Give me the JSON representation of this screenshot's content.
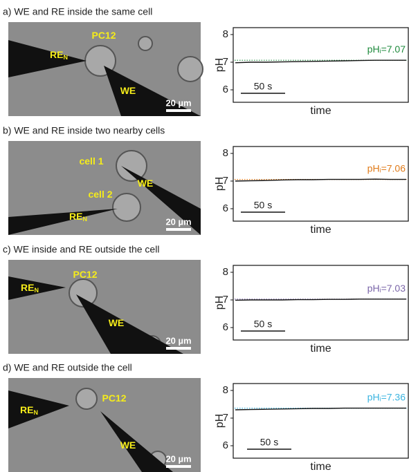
{
  "chart_data": [
    {
      "type": "line",
      "title": "a) WE and RE inside the same cell",
      "ylabel": "pH",
      "xlabel": "time",
      "ylim": [
        5.55,
        8.25
      ],
      "yticks": [
        6,
        7,
        8
      ],
      "color": "#111111",
      "values": [
        6.98,
        7.0,
        7.0,
        7.01,
        7.02,
        7.03,
        7.04,
        7.05,
        7.06,
        7.07,
        7.07,
        7.07
      ],
      "reference_line": 7.07,
      "reference_color": "#1e8a3c",
      "annotation": {
        "text": "pH",
        "sub": "i",
        "rest": "=7.07"
      },
      "time_bar": "50 s",
      "image_labels": [
        {
          "text": "PC12"
        },
        {
          "text": "RE",
          "sub": "N"
        },
        {
          "text": "WE"
        }
      ],
      "scale_bar": "20 µm"
    },
    {
      "type": "line",
      "title": "b) WE and RE inside two nearby cells",
      "ylabel": "pH",
      "xlabel": "time",
      "ylim": [
        5.55,
        8.25
      ],
      "yticks": [
        6,
        7,
        8
      ],
      "color": "#111111",
      "values": [
        7.0,
        7.01,
        7.02,
        7.04,
        7.05,
        7.05,
        7.06,
        7.06,
        7.06,
        7.07,
        7.06,
        7.06
      ],
      "reference_line": 7.06,
      "reference_color": "#e07b1a",
      "annotation": {
        "text": "pH",
        "sub": "i",
        "rest": "=7.06"
      },
      "time_bar": "50 s",
      "image_labels": [
        {
          "text": "cell 1"
        },
        {
          "text": "WE"
        },
        {
          "text": "cell 2"
        },
        {
          "text": "RE",
          "sub": "N"
        }
      ],
      "scale_bar": "20 µm"
    },
    {
      "type": "line",
      "title": "c) WE inside and RE outside the cell",
      "ylabel": "pH",
      "xlabel": "time",
      "ylim": [
        5.55,
        8.25
      ],
      "yticks": [
        6,
        7,
        8
      ],
      "color": "#111111",
      "values": [
        6.99,
        7.0,
        7.0,
        7.0,
        7.01,
        7.01,
        7.02,
        7.02,
        7.03,
        7.03,
        7.03,
        7.03
      ],
      "reference_line": 7.03,
      "reference_color": "#7a65a8",
      "annotation": {
        "text": "pH",
        "sub": "i",
        "rest": "=7.03"
      },
      "time_bar": "50 s",
      "image_labels": [
        {
          "text": "RE",
          "sub": "N"
        },
        {
          "text": "PC12"
        },
        {
          "text": "WE"
        }
      ],
      "scale_bar": "20 µm"
    },
    {
      "type": "line",
      "title": "d) WE and RE outside the cell",
      "ylabel": "pH",
      "xlabel": "time",
      "ylim": [
        5.55,
        8.25
      ],
      "yticks": [
        6,
        7,
        8
      ],
      "color": "#111111",
      "values": [
        7.3,
        7.31,
        7.32,
        7.33,
        7.34,
        7.35,
        7.35,
        7.36,
        7.36,
        7.36,
        7.36,
        7.36
      ],
      "reference_line": 7.36,
      "reference_color": "#3bb4e0",
      "annotation": {
        "text": "pH",
        "sub": "i",
        "rest": "=7.36"
      },
      "time_bar": "50 s",
      "image_labels": [
        {
          "text": "RE",
          "sub": "N"
        },
        {
          "text": "PC12"
        },
        {
          "text": "WE"
        }
      ],
      "scale_bar": "20 µm"
    }
  ]
}
